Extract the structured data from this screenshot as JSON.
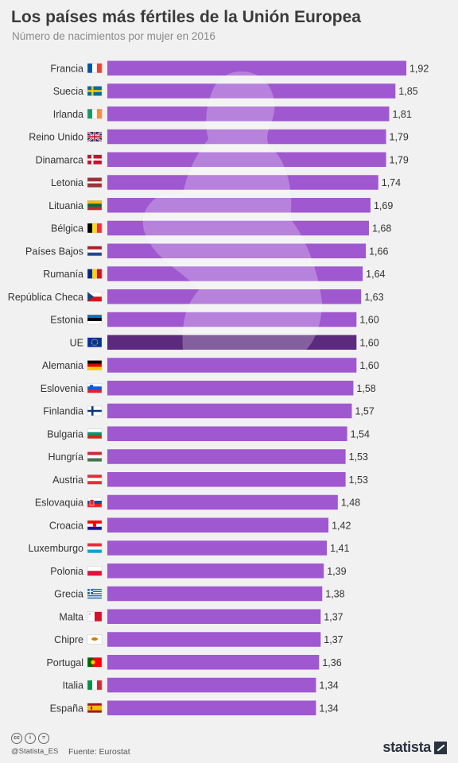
{
  "header": {
    "title": "Los países más fértiles de la Unión Europea",
    "subtitle": "Número de nacimientos por mujer en 2016"
  },
  "colors": {
    "bar": "#9f58d0",
    "highlight_bar": "#5b2a7d",
    "background": "#f1f1f1",
    "silhouette": "#ffffff"
  },
  "chart_data": {
    "type": "bar",
    "orientation": "horizontal",
    "categories": [
      "Francia",
      "Suecia",
      "Irlanda",
      "Reino Unido",
      "Dinamarca",
      "Letonia",
      "Lituania",
      "Bélgica",
      "Países Bajos",
      "Rumanía",
      "República Checa",
      "Estonia",
      "UE",
      "Alemania",
      "Eslovenia",
      "Finlandia",
      "Bulgaria",
      "Hungría",
      "Austria",
      "Eslovaquia",
      "Croacia",
      "Luxemburgo",
      "Polonia",
      "Grecia",
      "Malta",
      "Chipre",
      "Portugal",
      "Italia",
      "España"
    ],
    "values": [
      1.92,
      1.85,
      1.81,
      1.79,
      1.79,
      1.74,
      1.69,
      1.68,
      1.66,
      1.64,
      1.63,
      1.6,
      1.6,
      1.6,
      1.58,
      1.57,
      1.54,
      1.53,
      1.53,
      1.48,
      1.42,
      1.41,
      1.39,
      1.38,
      1.37,
      1.37,
      1.36,
      1.34,
      1.34
    ],
    "value_labels": [
      "1,92",
      "1,85",
      "1,81",
      "1,79",
      "1,79",
      "1,74",
      "1,69",
      "1,68",
      "1,66",
      "1,64",
      "1,63",
      "1,60",
      "1,60",
      "1,60",
      "1,58",
      "1,57",
      "1,54",
      "1,53",
      "1,53",
      "1,48",
      "1,42",
      "1,41",
      "1,39",
      "1,38",
      "1,37",
      "1,37",
      "1,36",
      "1,34",
      "1,34"
    ],
    "flags": [
      "fr",
      "se",
      "ie",
      "gb",
      "dk",
      "lv",
      "lt",
      "be",
      "nl",
      "ro",
      "cz",
      "ee",
      "eu",
      "de",
      "si",
      "fi",
      "bg",
      "hu",
      "at",
      "sk",
      "hr",
      "lu",
      "pl",
      "gr",
      "mt",
      "cy",
      "pt",
      "it",
      "es"
    ],
    "highlight": "UE",
    "xlim": [
      0,
      1.92
    ],
    "grid": false,
    "legend": "none"
  },
  "footer": {
    "handle": "@Statista_ES",
    "source": "Fuente: Eurostat",
    "logo": "statista",
    "license_icons": [
      "cc-icon",
      "person-icon",
      "equals-icon"
    ]
  }
}
